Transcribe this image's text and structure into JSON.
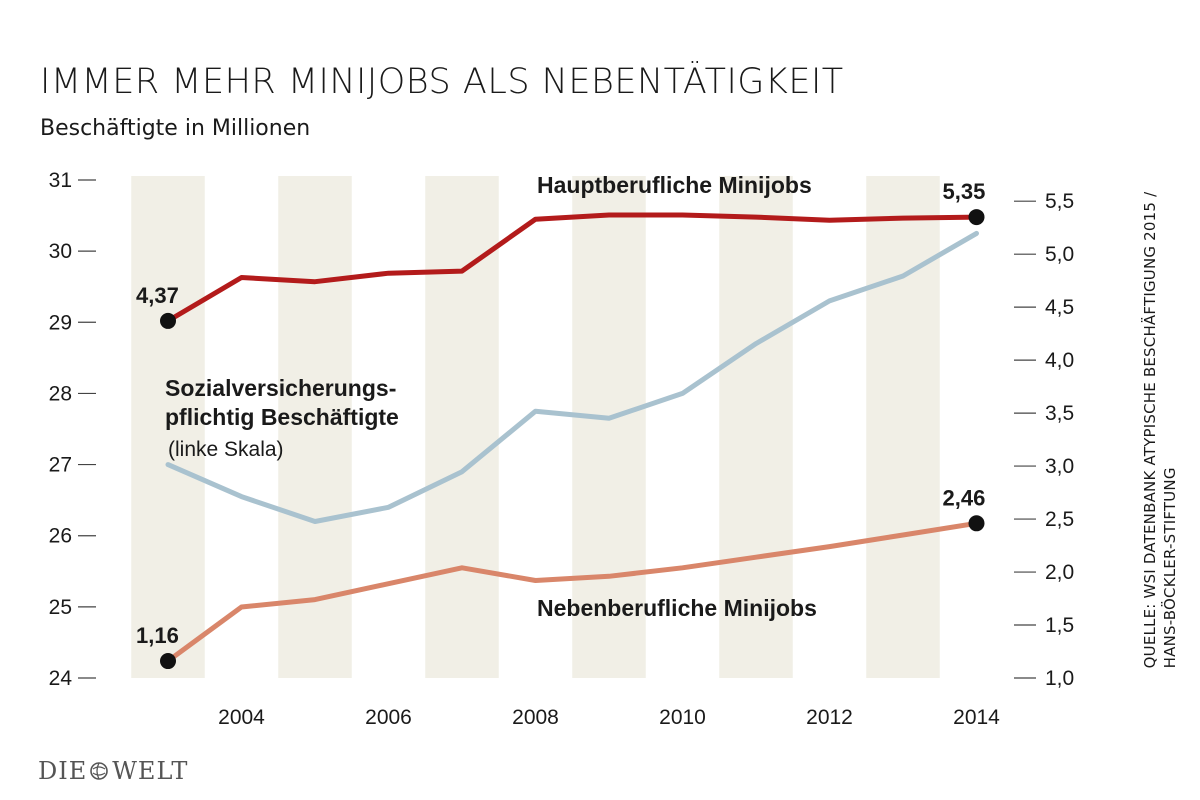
{
  "header": {
    "title": "IMMER MEHR MINIJOBS ALS NEBENTÄTIGKEIT",
    "subtitle": "Beschäftigte in Millionen"
  },
  "source": {
    "line1": "QUELLE: WSI DATENBANK ATYPISCHE BESCHÄFTIGUNG 2015 /",
    "line2": "HANS-BÖCKLER-STIFTUNG"
  },
  "logo": {
    "left": "DIE",
    "right": "WELT"
  },
  "chart_data": {
    "type": "line",
    "x": [
      2003,
      2004,
      2005,
      2006,
      2007,
      2008,
      2009,
      2010,
      2011,
      2012,
      2013,
      2014
    ],
    "x_ticks": [
      "2004",
      "2006",
      "2008",
      "2010",
      "2012",
      "2014"
    ],
    "x_tick_values": [
      2004,
      2006,
      2008,
      2010,
      2012,
      2014
    ],
    "xlim": [
      2002.2,
      2014.8
    ],
    "y_left": {
      "lim": [
        24,
        31
      ],
      "ticks": [
        "24",
        "25",
        "26",
        "27",
        "28",
        "29",
        "30",
        "31"
      ],
      "tick_values": [
        24,
        25,
        26,
        27,
        28,
        29,
        30,
        31
      ]
    },
    "y_right": {
      "lim": [
        1.0,
        5.7
      ],
      "ticks": [
        "1,0",
        "1,5",
        "2,0",
        "2,5",
        "3,0",
        "3,5",
        "4,0",
        "4,5",
        "5,0",
        "5,5"
      ],
      "tick_values": [
        1.0,
        1.5,
        2.0,
        2.5,
        3.0,
        3.5,
        4.0,
        4.5,
        5.0,
        5.5
      ]
    },
    "shaded_bands": [
      2003,
      2005,
      2007,
      2009,
      2011,
      2013
    ],
    "series": [
      {
        "name": "Hauptberufliche Minijobs",
        "axis": "right",
        "color": "#b31b1b",
        "values": [
          4.37,
          4.78,
          4.74,
          4.82,
          4.84,
          5.33,
          5.37,
          5.37,
          5.35,
          5.32,
          5.34,
          5.35
        ],
        "labels": [
          {
            "index": 0,
            "text": "4,37"
          },
          {
            "index": 11,
            "text": "5,35"
          }
        ]
      },
      {
        "name": "Sozialversicherungs- pflichtig Beschäftigte",
        "note": "(linke Skala)",
        "axis": "left",
        "color": "#a9c2cf",
        "values": [
          27.0,
          26.55,
          26.2,
          26.4,
          26.9,
          27.75,
          27.65,
          28.0,
          28.7,
          29.3,
          29.65,
          30.25
        ],
        "labels": []
      },
      {
        "name": "Nebenberufliche Minijobs",
        "axis": "right",
        "color": "#d9866a",
        "values": [
          1.16,
          1.67,
          1.74,
          1.89,
          2.04,
          1.92,
          1.96,
          2.04,
          2.14,
          2.24,
          2.35,
          2.46
        ],
        "labels": [
          {
            "index": 0,
            "text": "1,16"
          },
          {
            "index": 11,
            "text": "2,46"
          }
        ]
      }
    ],
    "series_labels": {
      "haupt": "Hauptberufliche Minijobs",
      "sozial_line1": "Sozialversicherungs-",
      "sozial_line2": "pflichtig Beschäftigte",
      "sozial_note": "(linke Skala)",
      "neben": "Nebenberufliche Minijobs"
    }
  }
}
